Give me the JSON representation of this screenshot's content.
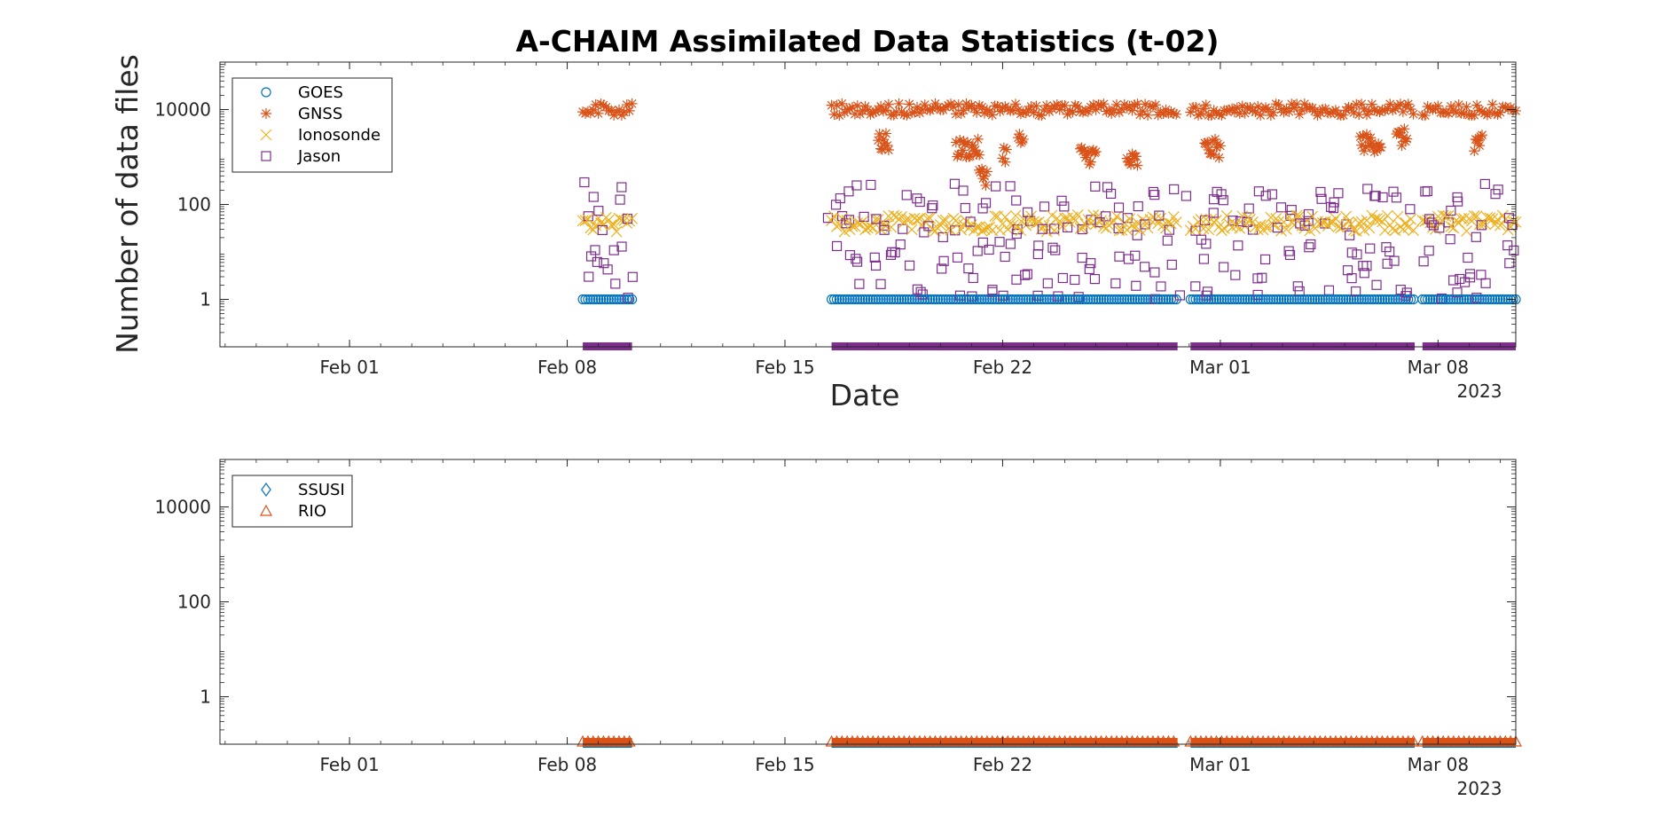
{
  "title": "A-CHAIM Assimilated Data Statistics (t-02)",
  "chart_data": [
    {
      "type": "scatter",
      "ylabel": "Number of data files",
      "xlabel": "Date",
      "yscale": "log",
      "ylim": [
        0.1,
        100000
      ],
      "xlim": [
        "2023-01-27T20:00",
        "2023-03-10T12:00"
      ],
      "x_ticks": [
        {
          "date": "2023-02-01",
          "label": "Feb 01"
        },
        {
          "date": "2023-02-08",
          "label": "Feb 08"
        },
        {
          "date": "2023-02-15",
          "label": "Feb 15"
        },
        {
          "date": "2023-02-22",
          "label": "Feb 22"
        },
        {
          "date": "2023-03-01",
          "label": "Mar 01"
        },
        {
          "date": "2023-03-08",
          "label": "Mar 08"
        }
      ],
      "x_year_label": "2023",
      "y_ticks": [
        {
          "value": 1,
          "label": "1"
        },
        {
          "value": 100,
          "label": "100"
        },
        {
          "value": 10000,
          "label": "10000"
        }
      ],
      "legend_position": "top-left",
      "coverage_periods": [
        [
          "2023-02-08T12:00",
          "2023-02-10T02:00"
        ],
        [
          "2023-02-16T12:00",
          "2023-02-27T15:00"
        ],
        [
          "2023-02-28T01:00",
          "2023-03-07T06:00"
        ],
        [
          "2023-03-07T12:00",
          "2023-03-10T12:00"
        ]
      ],
      "series": [
        {
          "name": "GOES",
          "marker": "circle",
          "color": "#0072BD",
          "typical_value": 1
        },
        {
          "name": "GNSS",
          "marker": "asterisk",
          "color": "#D95319",
          "typical_value": 10000,
          "dips": [
            {
              "start": "2023-02-18T00:00",
              "end": "2023-02-18T08:00",
              "value": 2000
            },
            {
              "start": "2023-02-20T12:00",
              "end": "2023-02-21T06:00",
              "value": 1500
            },
            {
              "start": "2023-02-21T06:00",
              "end": "2023-02-21T12:00",
              "value": 400
            },
            {
              "start": "2023-02-22T00:00",
              "end": "2023-02-22T03:00",
              "value": 1200
            },
            {
              "start": "2023-02-22T12:00",
              "end": "2023-02-22T16:00",
              "value": 2200
            },
            {
              "start": "2023-02-24T12:00",
              "end": "2023-02-25T00:00",
              "value": 1100
            },
            {
              "start": "2023-02-26T00:00",
              "end": "2023-02-26T08:00",
              "value": 800
            },
            {
              "start": "2023-02-28T12:00",
              "end": "2023-03-01T00:00",
              "value": 1500
            },
            {
              "start": "2023-03-05T12:00",
              "end": "2023-03-06T04:00",
              "value": 2000
            },
            {
              "start": "2023-03-06T16:00",
              "end": "2023-03-07T00:00",
              "value": 2500
            },
            {
              "start": "2023-03-09T04:00",
              "end": "2023-03-09T10:00",
              "value": 2000
            }
          ]
        },
        {
          "name": "Ionosonde",
          "marker": "cross",
          "color": "#EDB120",
          "typical_value": 40
        },
        {
          "name": "Jason",
          "marker": "square",
          "color": "#7E2F8E",
          "range": [
            1,
            300
          ]
        }
      ]
    },
    {
      "type": "scatter",
      "yscale": "log",
      "ylim": [
        0.1,
        100000
      ],
      "xlim": [
        "2023-01-27T20:00",
        "2023-03-10T12:00"
      ],
      "x_ticks": [
        {
          "date": "2023-02-01",
          "label": "Feb 01"
        },
        {
          "date": "2023-02-08",
          "label": "Feb 08"
        },
        {
          "date": "2023-02-15",
          "label": "Feb 15"
        },
        {
          "date": "2023-02-22",
          "label": "Feb 22"
        },
        {
          "date": "2023-03-01",
          "label": "Mar 01"
        },
        {
          "date": "2023-03-08",
          "label": "Mar 08"
        }
      ],
      "x_year_label": "2023",
      "y_ticks": [
        {
          "value": 1,
          "label": "1"
        },
        {
          "value": 100,
          "label": "100"
        },
        {
          "value": 10000,
          "label": "10000"
        }
      ],
      "legend_position": "top-left",
      "series": [
        {
          "name": "SSUSI",
          "marker": "diamond",
          "color": "#0072BD"
        },
        {
          "name": "RIO",
          "marker": "triangle",
          "color": "#D95319"
        }
      ]
    }
  ]
}
